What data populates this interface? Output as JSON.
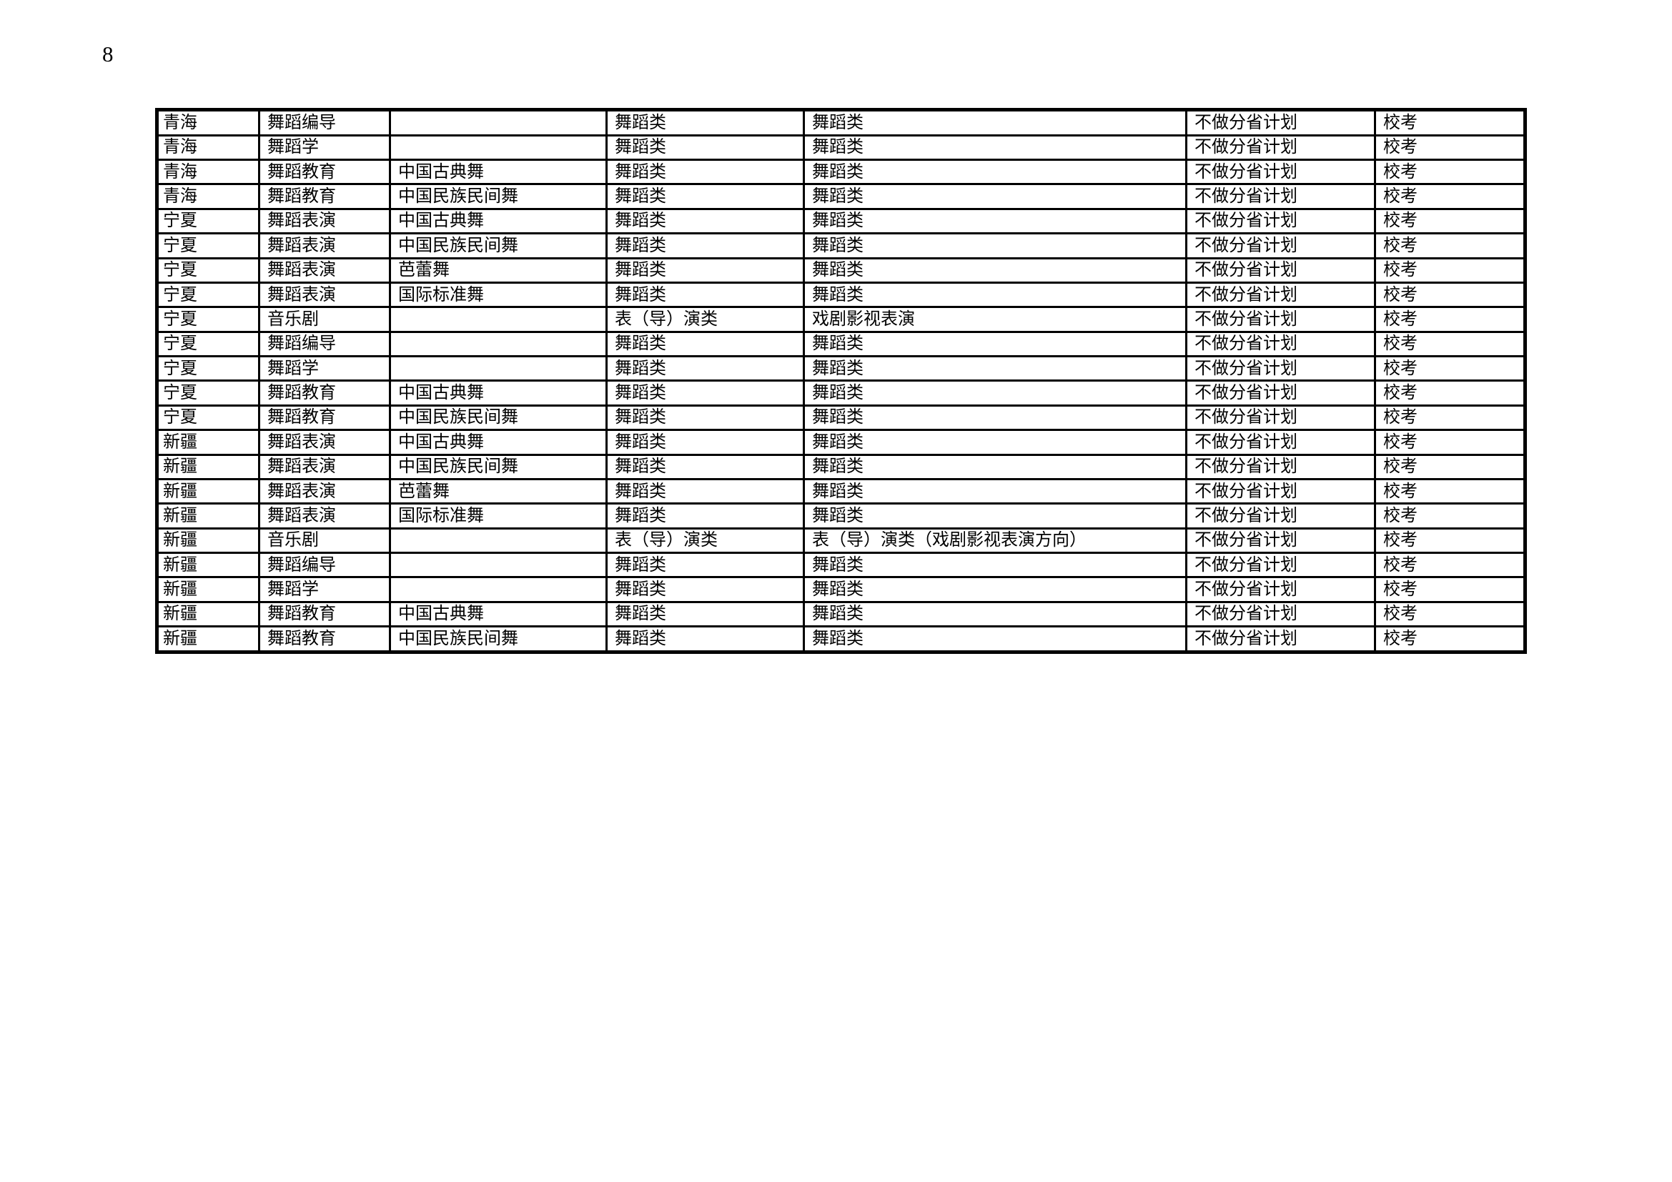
{
  "page": {
    "number": "8"
  },
  "colors": {
    "background": "#ffffff",
    "text": "#000000",
    "border": "#000000"
  },
  "table": {
    "rows": [
      [
        "青海",
        "舞蹈编导",
        "",
        "舞蹈类",
        "舞蹈类",
        "不做分省计划",
        "校考"
      ],
      [
        "青海",
        "舞蹈学",
        "",
        "舞蹈类",
        "舞蹈类",
        "不做分省计划",
        "校考"
      ],
      [
        "青海",
        "舞蹈教育",
        "中国古典舞",
        "舞蹈类",
        "舞蹈类",
        "不做分省计划",
        "校考"
      ],
      [
        "青海",
        "舞蹈教育",
        "中国民族民间舞",
        "舞蹈类",
        "舞蹈类",
        "不做分省计划",
        "校考"
      ],
      [
        "宁夏",
        "舞蹈表演",
        "中国古典舞",
        "舞蹈类",
        "舞蹈类",
        "不做分省计划",
        "校考"
      ],
      [
        "宁夏",
        "舞蹈表演",
        "中国民族民间舞",
        "舞蹈类",
        "舞蹈类",
        "不做分省计划",
        "校考"
      ],
      [
        "宁夏",
        "舞蹈表演",
        "芭蕾舞",
        "舞蹈类",
        "舞蹈类",
        "不做分省计划",
        "校考"
      ],
      [
        "宁夏",
        "舞蹈表演",
        "国际标准舞",
        "舞蹈类",
        "舞蹈类",
        "不做分省计划",
        "校考"
      ],
      [
        "宁夏",
        "音乐剧",
        "",
        "表（导）演类",
        "戏剧影视表演",
        "不做分省计划",
        "校考"
      ],
      [
        "宁夏",
        "舞蹈编导",
        "",
        "舞蹈类",
        "舞蹈类",
        "不做分省计划",
        "校考"
      ],
      [
        "宁夏",
        "舞蹈学",
        "",
        "舞蹈类",
        "舞蹈类",
        "不做分省计划",
        "校考"
      ],
      [
        "宁夏",
        "舞蹈教育",
        "中国古典舞",
        "舞蹈类",
        "舞蹈类",
        "不做分省计划",
        "校考"
      ],
      [
        "宁夏",
        "舞蹈教育",
        "中国民族民间舞",
        "舞蹈类",
        "舞蹈类",
        "不做分省计划",
        "校考"
      ],
      [
        "新疆",
        "舞蹈表演",
        "中国古典舞",
        "舞蹈类",
        "舞蹈类",
        "不做分省计划",
        "校考"
      ],
      [
        "新疆",
        "舞蹈表演",
        "中国民族民间舞",
        "舞蹈类",
        "舞蹈类",
        "不做分省计划",
        "校考"
      ],
      [
        "新疆",
        "舞蹈表演",
        "芭蕾舞",
        "舞蹈类",
        "舞蹈类",
        "不做分省计划",
        "校考"
      ],
      [
        "新疆",
        "舞蹈表演",
        "国际标准舞",
        "舞蹈类",
        "舞蹈类",
        "不做分省计划",
        "校考"
      ],
      [
        "新疆",
        "音乐剧",
        "",
        "表（导）演类",
        "表（导）演类（戏剧影视表演方向）",
        "不做分省计划",
        "校考"
      ],
      [
        "新疆",
        "舞蹈编导",
        "",
        "舞蹈类",
        "舞蹈类",
        "不做分省计划",
        "校考"
      ],
      [
        "新疆",
        "舞蹈学",
        "",
        "舞蹈类",
        "舞蹈类",
        "不做分省计划",
        "校考"
      ],
      [
        "新疆",
        "舞蹈教育",
        "中国古典舞",
        "舞蹈类",
        "舞蹈类",
        "不做分省计划",
        "校考"
      ],
      [
        "新疆",
        "舞蹈教育",
        "中国民族民间舞",
        "舞蹈类",
        "舞蹈类",
        "不做分省计划",
        "校考"
      ]
    ]
  }
}
